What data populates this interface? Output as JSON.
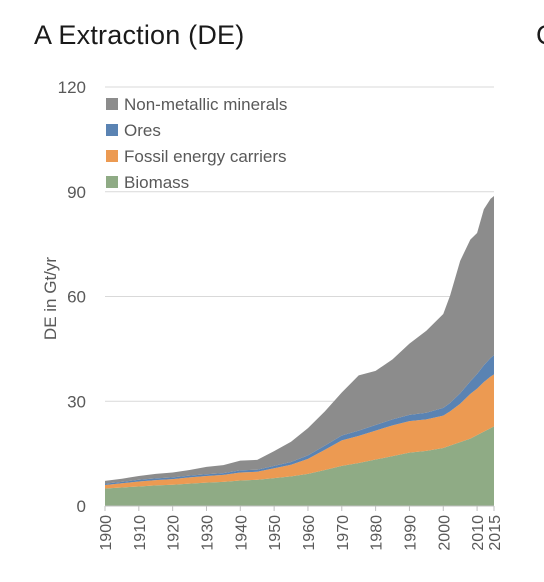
{
  "panel": {
    "title": "A Extraction (DE)",
    "next_panel_letter": "C"
  },
  "chart_data": {
    "type": "area",
    "stacked": true,
    "title": "A Extraction (DE)",
    "xlabel": "",
    "ylabel": "DE in Gt/yr",
    "xlim": [
      1900,
      2015
    ],
    "ylim": [
      0,
      120
    ],
    "yticks": [
      0,
      30,
      60,
      90,
      120
    ],
    "xticks": [
      1900,
      1910,
      1920,
      1930,
      1940,
      1950,
      1960,
      1970,
      1980,
      1990,
      2000,
      2010,
      2015
    ],
    "grid": "horizontal",
    "legend_position": "top-left",
    "x": [
      1900,
      1905,
      1910,
      1915,
      1920,
      1925,
      1930,
      1935,
      1940,
      1945,
      1950,
      1955,
      1960,
      1965,
      1970,
      1975,
      1980,
      1985,
      1990,
      1995,
      2000,
      2002,
      2005,
      2008,
      2010,
      2012,
      2014,
      2015
    ],
    "series": [
      {
        "name": "Biomass",
        "color": "#8fab85",
        "values": [
          5.0,
          5.3,
          5.6,
          5.9,
          6.1,
          6.4,
          6.7,
          6.9,
          7.3,
          7.5,
          8.0,
          8.5,
          9.2,
          10.3,
          11.5,
          12.3,
          13.3,
          14.3,
          15.3,
          15.8,
          16.6,
          17.3,
          18.3,
          19.3,
          20.3,
          21.3,
          22.3,
          22.8
        ]
      },
      {
        "name": "Fossil energy carriers",
        "color": "#ec9a52",
        "values": [
          1.0,
          1.2,
          1.4,
          1.5,
          1.6,
          1.8,
          1.9,
          2.0,
          2.3,
          2.3,
          2.8,
          3.3,
          4.3,
          5.8,
          7.3,
          7.8,
          8.3,
          8.8,
          9.0,
          9.0,
          9.3,
          9.8,
          11.0,
          12.8,
          13.3,
          14.2,
          14.8,
          14.9
        ]
      },
      {
        "name": "Ores",
        "color": "#5a83b3",
        "values": [
          0.4,
          0.4,
          0.5,
          0.5,
          0.5,
          0.5,
          0.5,
          0.5,
          0.6,
          0.6,
          0.7,
          0.8,
          1.0,
          1.2,
          1.4,
          1.5,
          1.6,
          1.7,
          1.8,
          1.9,
          2.2,
          2.4,
          3.0,
          3.6,
          4.2,
          4.8,
          5.3,
          5.5
        ]
      },
      {
        "name": "Non-metallic minerals",
        "color": "#8c8c8c",
        "values": [
          0.8,
          0.9,
          1.1,
          1.3,
          1.4,
          1.6,
          2.1,
          2.3,
          2.8,
          2.8,
          4.2,
          5.8,
          7.8,
          9.8,
          12.3,
          15.8,
          15.5,
          17.2,
          20.4,
          23.5,
          26.9,
          30.7,
          37.9,
          40.6,
          40.4,
          44.7,
          45.6,
          45.6
        ]
      }
    ]
  }
}
